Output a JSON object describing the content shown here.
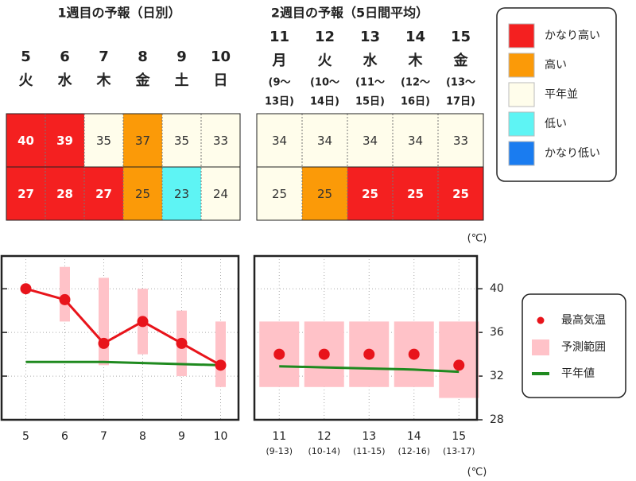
{
  "week1": {
    "title": "1週目の予報（日別）",
    "days": [
      {
        "day": "5",
        "weekday": "火"
      },
      {
        "day": "6",
        "weekday": "水"
      },
      {
        "day": "7",
        "weekday": "木"
      },
      {
        "day": "8",
        "weekday": "金"
      },
      {
        "day": "9",
        "weekday": "土"
      },
      {
        "day": "10",
        "weekday": "日"
      }
    ],
    "rows": [
      [
        {
          "value": 40,
          "color": "#f42020"
        },
        {
          "value": 39,
          "color": "#f42020"
        },
        {
          "value": 35,
          "color": "#fffdeb"
        },
        {
          "value": 37,
          "color": "#fb9a08"
        },
        {
          "value": 35,
          "color": "#fffdeb"
        },
        {
          "value": 33,
          "color": "#fffdeb"
        }
      ],
      [
        {
          "value": 27,
          "color": "#f42020"
        },
        {
          "value": 28,
          "color": "#f42020"
        },
        {
          "value": 27,
          "color": "#f42020"
        },
        {
          "value": 25,
          "color": "#fb9a08"
        },
        {
          "value": 23,
          "color": "#5ef4f4"
        },
        {
          "value": 24,
          "color": "#fffdeb"
        }
      ]
    ]
  },
  "week2": {
    "title": "2週目の予報（5日間平均）",
    "days": [
      {
        "day": "11",
        "weekday": "月",
        "range": [
          "(9〜",
          "13日)"
        ]
      },
      {
        "day": "12",
        "weekday": "火",
        "range": [
          "(10〜",
          "14日)"
        ]
      },
      {
        "day": "13",
        "weekday": "水",
        "range": [
          "(11〜",
          "15日)"
        ]
      },
      {
        "day": "14",
        "weekday": "木",
        "range": [
          "(12〜",
          "16日)"
        ]
      },
      {
        "day": "15",
        "weekday": "金",
        "range": [
          "(13〜",
          "17日)"
        ]
      }
    ],
    "rows": [
      [
        {
          "value": 34,
          "color": "#fffdeb"
        },
        {
          "value": 34,
          "color": "#fffdeb"
        },
        {
          "value": 34,
          "color": "#fffdeb"
        },
        {
          "value": 34,
          "color": "#fffdeb"
        },
        {
          "value": 33,
          "color": "#fffdeb"
        }
      ],
      [
        {
          "value": 25,
          "color": "#fffdeb"
        },
        {
          "value": 25,
          "color": "#fb9a08"
        },
        {
          "value": 25,
          "color": "#f42020"
        },
        {
          "value": 25,
          "color": "#f42020"
        },
        {
          "value": 25,
          "color": "#f42020"
        }
      ]
    ]
  },
  "legend": [
    {
      "label": "かなり高い",
      "color": "#f42020"
    },
    {
      "label": "高い",
      "color": "#fb9a08"
    },
    {
      "label": "平年並",
      "color": "#fffdeb"
    },
    {
      "label": "低い",
      "color": "#5ef4f4"
    },
    {
      "label": "かなり低い",
      "color": "#1a7cf0"
    }
  ],
  "chart_data": [
    {
      "type": "line",
      "categories": [
        "5",
        "6",
        "7",
        "8",
        "9",
        "10"
      ],
      "ylim": [
        28,
        43
      ],
      "yticks": [
        28,
        32,
        36,
        40
      ],
      "series": [
        {
          "name": "最高気温",
          "color": "#e8141b",
          "line": true,
          "values": [
            40,
            39,
            35,
            37,
            35,
            33
          ]
        },
        {
          "name": "予測範囲",
          "color": "#ffc2c8",
          "low": [
            null,
            37,
            33,
            34,
            32,
            31
          ],
          "high": [
            null,
            42,
            41,
            40,
            38,
            37
          ]
        },
        {
          "name": "平年値",
          "color": "#1f8a1f",
          "values": [
            33.3,
            33.3,
            33.3,
            33.2,
            33.1,
            33.0
          ]
        }
      ]
    },
    {
      "type": "line",
      "categories": [
        "11",
        "12",
        "13",
        "14",
        "15"
      ],
      "subcategories": [
        "(9-13)",
        "(10-14)",
        "(11-15)",
        "(12-16)",
        "(13-17)"
      ],
      "ylim": [
        28,
        43
      ],
      "yticks": [
        28,
        32,
        36,
        40
      ],
      "y_unit": "(℃)",
      "series": [
        {
          "name": "最高気温",
          "color": "#e8141b",
          "line": false,
          "values": [
            34,
            34,
            34,
            34,
            33
          ]
        },
        {
          "name": "予測範囲",
          "color": "#ffc2c8",
          "low": [
            31,
            31,
            31,
            31,
            30
          ],
          "high": [
            37,
            37,
            37,
            37,
            37
          ]
        },
        {
          "name": "平年値",
          "color": "#1f8a1f",
          "values": [
            32.9,
            32.8,
            32.7,
            32.6,
            32.4
          ]
        }
      ]
    }
  ],
  "footer_unit": "(℃)"
}
